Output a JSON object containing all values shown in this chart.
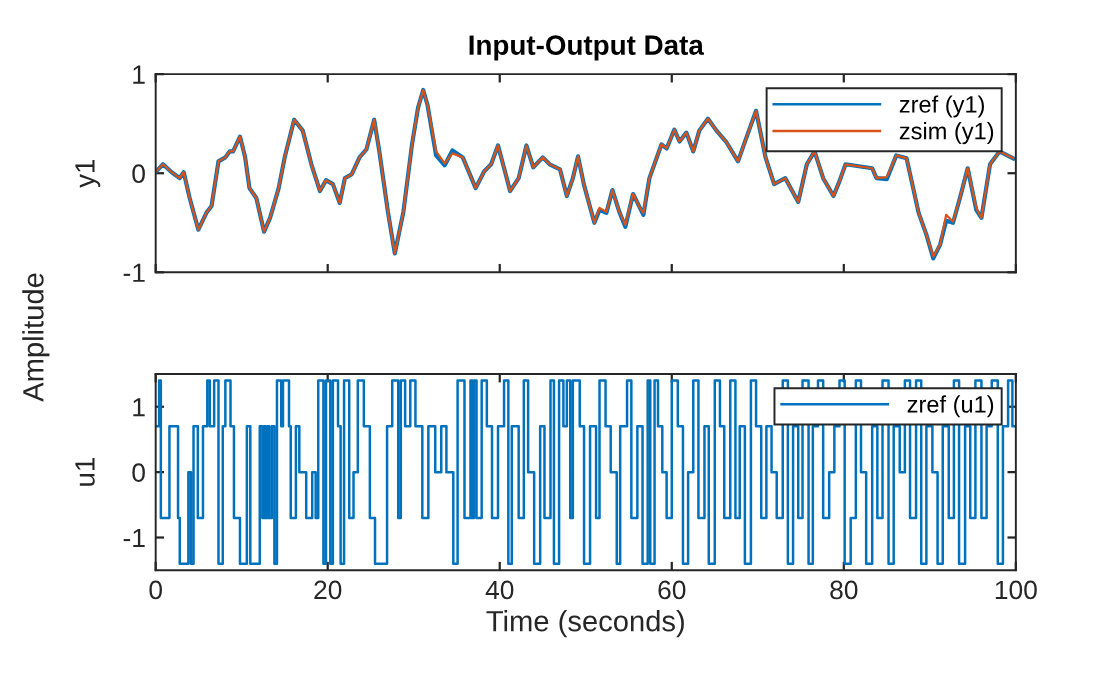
{
  "chart_data": [
    {
      "type": "line",
      "title": "Input-Output Data",
      "ylabel": "y1",
      "annotations": [
        "Amplitude"
      ],
      "legend": "top right",
      "tick_labels": "y",
      "xlim": [
        0,
        100
      ],
      "xticks": [
        0,
        20,
        40,
        60,
        80,
        100
      ],
      "ylim": [
        -1,
        1
      ],
      "yticks": [
        -1,
        0,
        1
      ],
      "grid": false,
      "x": [
        0.08,
        0.85,
        1.86,
        2.79,
        3.26,
        3.95,
        4.96,
        5.9,
        6.5,
        7.3,
        8.1,
        8.6,
        9.0,
        9.8,
        10.4,
        10.9,
        11.7,
        12.6,
        13.3,
        14.3,
        15.0,
        16.1,
        17.1,
        18.1,
        19.1,
        19.8,
        20.6,
        21.4,
        22.0,
        22.8,
        23.7,
        24.5,
        25.4,
        26.0,
        27.0,
        27.8,
        28.8,
        29.8,
        30.5,
        31.1,
        31.6,
        32.6,
        33.6,
        34.5,
        35.7,
        37.2,
        38.2,
        39.0,
        39.8,
        40.6,
        41.2,
        42.2,
        43.1,
        43.9,
        45.0,
        45.8,
        47.0,
        47.8,
        48.5,
        49.1,
        49.8,
        51.0,
        51.6,
        52.4,
        53.1,
        53.9,
        54.6,
        55.5,
        56.3,
        56.7,
        57.4,
        58.8,
        59.4,
        60.3,
        60.9,
        61.7,
        62.5,
        63.2,
        64.2,
        65.2,
        66.3,
        67.7,
        68.8,
        69.8,
        70.9,
        71.9,
        73.2,
        74.7,
        75.7,
        76.6,
        77.6,
        78.8,
        79.5,
        80.2,
        83.3,
        83.8,
        85.0,
        86.1,
        87.3,
        88.7,
        89.6,
        90.4,
        91.2,
        91.9,
        92.7,
        93.5,
        94.4,
        95.4,
        96.0,
        97.0,
        98.1,
        99.7
      ],
      "series": [
        {
          "name": "zref (y1)",
          "color": "#0072bd",
          "values": [
            0.02,
            0.09,
            0.01,
            -0.05,
            0.01,
            -0.25,
            -0.57,
            -0.4,
            -0.33,
            0.12,
            0.16,
            0.22,
            0.22,
            0.37,
            0.16,
            -0.15,
            -0.25,
            -0.59,
            -0.45,
            -0.15,
            0.16,
            0.54,
            0.43,
            0.09,
            -0.18,
            -0.07,
            -0.11,
            -0.3,
            -0.05,
            -0.01,
            0.16,
            0.24,
            0.54,
            0.22,
            -0.39,
            -0.81,
            -0.39,
            0.29,
            0.66,
            0.84,
            0.69,
            0.18,
            0.08,
            0.23,
            0.16,
            -0.15,
            0.02,
            0.09,
            0.28,
            0.02,
            -0.18,
            -0.05,
            0.28,
            0.06,
            0.16,
            0.09,
            0.04,
            -0.23,
            -0.05,
            0.17,
            -0.12,
            -0.5,
            -0.37,
            -0.4,
            -0.17,
            -0.39,
            -0.54,
            -0.21,
            -0.35,
            -0.42,
            -0.05,
            0.29,
            0.25,
            0.44,
            0.32,
            0.41,
            0.22,
            0.43,
            0.55,
            0.43,
            0.32,
            0.12,
            0.39,
            0.63,
            0.16,
            -0.11,
            -0.05,
            -0.29,
            0.09,
            0.22,
            -0.05,
            -0.23,
            -0.08,
            0.09,
            0.05,
            -0.05,
            -0.06,
            0.18,
            0.15,
            -0.4,
            -0.62,
            -0.86,
            -0.72,
            -0.48,
            -0.5,
            -0.25,
            0.05,
            -0.37,
            -0.45,
            0.09,
            0.22,
            0.15
          ]
        },
        {
          "name": "zsim (y1)",
          "color": "#d95319",
          "values": [
            0.02,
            0.09,
            0.01,
            -0.05,
            0.01,
            -0.25,
            -0.57,
            -0.4,
            -0.33,
            0.12,
            0.16,
            0.22,
            0.22,
            0.37,
            0.16,
            -0.15,
            -0.25,
            -0.59,
            -0.45,
            -0.15,
            0.16,
            0.54,
            0.43,
            0.09,
            -0.18,
            -0.07,
            -0.11,
            -0.3,
            -0.05,
            -0.01,
            0.16,
            0.24,
            0.54,
            0.22,
            -0.39,
            -0.81,
            -0.39,
            0.29,
            0.66,
            0.84,
            0.69,
            0.22,
            0.1,
            0.2,
            0.16,
            -0.15,
            0.02,
            0.09,
            0.28,
            0.02,
            -0.18,
            -0.05,
            0.28,
            0.06,
            0.16,
            0.09,
            0.04,
            -0.23,
            -0.05,
            0.17,
            -0.12,
            -0.5,
            -0.35,
            -0.39,
            -0.17,
            -0.39,
            -0.52,
            -0.21,
            -0.35,
            -0.4,
            -0.05,
            0.29,
            0.25,
            0.44,
            0.32,
            0.41,
            0.22,
            0.43,
            0.55,
            0.43,
            0.32,
            0.12,
            0.39,
            0.63,
            0.16,
            -0.11,
            -0.05,
            -0.29,
            0.09,
            0.22,
            -0.05,
            -0.23,
            -0.08,
            0.09,
            0.05,
            -0.05,
            -0.04,
            0.18,
            0.15,
            -0.4,
            -0.62,
            -0.84,
            -0.72,
            -0.42,
            -0.49,
            -0.25,
            0.05,
            -0.35,
            -0.45,
            0.09,
            0.22,
            0.15
          ]
        }
      ]
    },
    {
      "type": "step",
      "ylabel": "u1",
      "xlabel": "Time (seconds)",
      "legend": "top right",
      "xlim": [
        0,
        100
      ],
      "xticks": [
        0,
        20,
        40,
        60,
        80,
        100
      ],
      "ylim": [
        -1.5,
        1.5
      ],
      "yticks": [
        -1,
        0,
        1
      ],
      "grid": false,
      "x": [
        0,
        0.4,
        0.6,
        1.6,
        2.6,
        2.8,
        3.8,
        4.1,
        4.4,
        4.9,
        5.5,
        6.0,
        6.3,
        6.8,
        7.3,
        7.8,
        8.1,
        8.7,
        9.1,
        9.8,
        10.6,
        11.0,
        12.1,
        12.4,
        12.6,
        12.8,
        13.0,
        13.2,
        13.5,
        13.8,
        14.1,
        14.6,
        14.8,
        15.5,
        15.7,
        16.3,
        16.7,
        17.5,
        18.2,
        18.6,
        18.9,
        19.5,
        19.8,
        20.3,
        20.6,
        21.2,
        21.5,
        21.9,
        22.5,
        23.0,
        23.5,
        24.2,
        24.9,
        25.5,
        26.9,
        27.5,
        28.2,
        28.5,
        29.0,
        29.6,
        30.2,
        31.0,
        31.7,
        32.5,
        33.2,
        33.8,
        34.6,
        35.1,
        35.9,
        36.6,
        36.8,
        37.0,
        37.3,
        37.9,
        38.5,
        39.1,
        39.8,
        40.5,
        41.0,
        41.4,
        42.2,
        42.8,
        43.3,
        44.0,
        44.7,
        45.2,
        45.9,
        46.3,
        46.9,
        47.4,
        47.8,
        48.2,
        48.5,
        49.3,
        49.8,
        50.5,
        51.2,
        51.6,
        52.3,
        52.9,
        53.6,
        54.0,
        54.8,
        55.3,
        56.0,
        56.6,
        57.2,
        57.5,
        58.0,
        58.4,
        58.9,
        59.4,
        60.0,
        60.7,
        61.3,
        61.9,
        62.5,
        63.1,
        63.8,
        64.3,
        65.0,
        65.6,
        66.1,
        66.8,
        67.4,
        67.9,
        68.5,
        69.2,
        69.8,
        70.4,
        71.0,
        71.6,
        72.2,
        72.9,
        73.5,
        74.1,
        74.7,
        75.2,
        75.9,
        76.4,
        77.0,
        77.6,
        78.3,
        78.9,
        79.5,
        80.1,
        80.8,
        81.4,
        82.0,
        82.6,
        83.3,
        83.9,
        84.5,
        85.2,
        85.8,
        86.5,
        87.1,
        87.7,
        88.4,
        89.0,
        89.6,
        90.3,
        90.9,
        91.5,
        92.2,
        92.8,
        93.4,
        94.1,
        94.7,
        95.3,
        96.0,
        96.6,
        97.2,
        97.9,
        98.5,
        99.1,
        99.6,
        100
      ],
      "series": [
        {
          "name": "zref (u1)",
          "color": "#0072bd",
          "values": [
            0.7,
            1.4,
            -0.7,
            0.7,
            -0.7,
            -1.4,
            0,
            -1.4,
            0.7,
            -0.7,
            0.7,
            1.4,
            0.7,
            1.4,
            -1.4,
            0.7,
            1.4,
            0.7,
            -0.7,
            -1.4,
            0.7,
            -1.4,
            0.7,
            -0.7,
            0.7,
            -0.7,
            0.7,
            -0.7,
            0.7,
            -1.4,
            1.4,
            0.7,
            1.4,
            0.7,
            -0.7,
            0.7,
            0,
            -0.7,
            0,
            -0.7,
            1.4,
            -1.4,
            1.4,
            -1.4,
            1.4,
            0.7,
            -1.4,
            1.4,
            -0.7,
            0,
            1.4,
            0.7,
            -0.7,
            -1.4,
            0.7,
            1.4,
            -0.7,
            1.4,
            0.7,
            1.4,
            0.7,
            -0.7,
            0.7,
            0,
            0.7,
            0,
            -1.4,
            1.4,
            -0.7,
            1.4,
            -0.7,
            1.4,
            -0.7,
            1.4,
            0.7,
            -0.7,
            0.7,
            1.4,
            -1.4,
            0.7,
            -0.7,
            1.4,
            0,
            -1.4,
            0.7,
            -0.7,
            1.4,
            -1.4,
            1.4,
            0.7,
            1.4,
            -0.7,
            1.4,
            0.7,
            -1.4,
            0.7,
            -0.7,
            1.4,
            0.7,
            0,
            -1.4,
            0.7,
            1.4,
            -0.7,
            0.7,
            -1.4,
            1.4,
            -1.4,
            1.4,
            0.7,
            0,
            -0.7,
            1.4,
            0.7,
            -1.4,
            0,
            1.4,
            -0.7,
            0.7,
            -1.4,
            1.4,
            0.7,
            -0.7,
            1.4,
            -0.7,
            0.7,
            -1.4,
            1.4,
            0.7,
            -0.7,
            0.7,
            0,
            -0.7,
            1.4,
            -1.4,
            0.7,
            -0.7,
            1.4,
            -1.4,
            0.7,
            1.4,
            -0.7,
            0,
            0.7,
            1.4,
            -1.4,
            -0.7,
            1.4,
            0,
            -1.4,
            0.7,
            -0.7,
            1.4,
            -1.4,
            0.7,
            0,
            1.4,
            -0.7,
            1.4,
            -1.4,
            0.7,
            0,
            -1.4,
            0.7,
            -0.7,
            1.4,
            -1.4,
            0.7,
            -0.7,
            1.4,
            -0.7,
            0.7,
            1.4,
            -1.4,
            0.7,
            1.4,
            0.7,
            0.7
          ]
        }
      ]
    }
  ]
}
